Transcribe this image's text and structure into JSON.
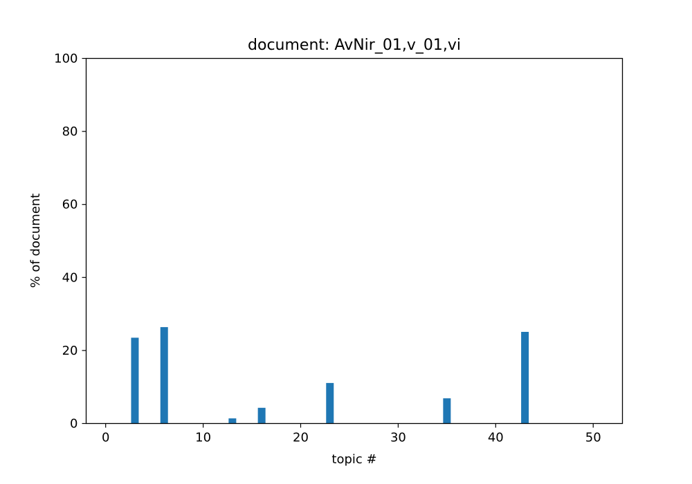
{
  "chart_data": {
    "type": "bar",
    "title": "document: AvNir_01,v_01,vi",
    "xlabel": "topic #",
    "ylabel": "% of document",
    "xlim": [
      -2,
      53
    ],
    "ylim": [
      0,
      100
    ],
    "x_ticks": [
      0,
      10,
      20,
      30,
      40,
      50
    ],
    "y_ticks": [
      0,
      20,
      40,
      60,
      80,
      100
    ],
    "grid": false,
    "bar_color": "#1f77b4",
    "x": [
      3,
      6,
      13,
      16,
      23,
      35,
      43
    ],
    "values": [
      23.5,
      26.4,
      1.4,
      4.3,
      11.1,
      6.9,
      25.1
    ]
  }
}
